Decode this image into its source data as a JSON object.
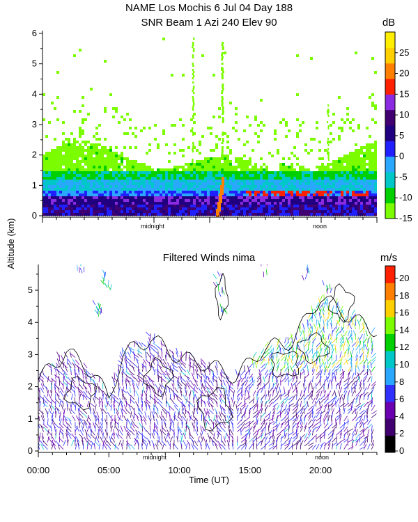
{
  "chart_data": [
    {
      "type": "heatmap",
      "title": "NAME Los Mochis     6 Jul 04 Day 188",
      "subtitle": "SNR Beam 1 Azi 240 Elev 90",
      "ylabel": "Altitude (km)",
      "ylim": [
        0,
        6
      ],
      "y_ticks": [
        "0",
        "1",
        "2",
        "3",
        "4",
        "5",
        "6"
      ],
      "x_markers": [
        "midnight",
        "noon"
      ],
      "colorbar": {
        "unit": "dB",
        "range": [
          -15,
          30
        ],
        "ticks": [
          "-15",
          "-10",
          "-5",
          "0",
          "5",
          "10",
          "15",
          "20",
          "25"
        ],
        "colors": [
          "#7cfc00",
          "#00d000",
          "#00c8c8",
          "#2aa8ff",
          "#2020ff",
          "#200080",
          "#400070",
          "#8a2be2",
          "#ff2000",
          "#ff8000",
          "#ffd000",
          "#ffee00"
        ]
      },
      "approx_profile": [
        {
          "altitude_km": 0.25,
          "snr_db": 5
        },
        {
          "altitude_km": 0.75,
          "snr_db": 0
        },
        {
          "altitude_km": 1.25,
          "snr_db": -10
        },
        {
          "altitude_km": 1.75,
          "snr_db": -15
        },
        {
          "altitude_km": 2.5,
          "snr_db": -15
        }
      ]
    },
    {
      "type": "scatter",
      "title": "Filtered Winds nima",
      "ylabel": "Altitude (km)",
      "xlabel": "Time (UT)",
      "xlim": [
        0,
        24
      ],
      "ylim": [
        0,
        5.7
      ],
      "x_ticks": [
        "00:00",
        "05:00",
        "10:00",
        "15:00",
        "20:00"
      ],
      "y_ticks": [
        "0",
        "1",
        "2",
        "3",
        "4",
        "5"
      ],
      "x_markers": [
        "midnight",
        "noon"
      ],
      "colorbar": {
        "unit": "m/s",
        "ticks": [
          "0",
          "2",
          "4",
          "6",
          "8",
          "10",
          "12",
          "14",
          "16",
          "18",
          "20"
        ],
        "colors": [
          "#000000",
          "#400070",
          "#6a00b0",
          "#3030ff",
          "#2aa8ff",
          "#00c8c8",
          "#00d000",
          "#7cfc00",
          "#ffd000",
          "#ff8000",
          "#ff2000"
        ]
      },
      "approx_wind_top_km": [
        {
          "time_ut": 0,
          "top_km": 2.2
        },
        {
          "time_ut": 2,
          "top_km": 3.1
        },
        {
          "time_ut": 4,
          "top_km": 2.4
        },
        {
          "time_ut": 5,
          "top_km": 1.6
        },
        {
          "time_ut": 6,
          "top_km": 3.0
        },
        {
          "time_ut": 8,
          "top_km": 3.5
        },
        {
          "time_ut": 10,
          "top_km": 2.9
        },
        {
          "time_ut": 12,
          "top_km": 2.7
        },
        {
          "time_ut": 14,
          "top_km": 2.3
        },
        {
          "time_ut": 16,
          "top_km": 3.2
        },
        {
          "time_ut": 18,
          "top_km": 3.4
        },
        {
          "time_ut": 20,
          "top_km": 4.8
        },
        {
          "time_ut": 22,
          "top_km": 4.2
        },
        {
          "time_ut": 23.5,
          "top_km": 3.8
        }
      ]
    }
  ]
}
